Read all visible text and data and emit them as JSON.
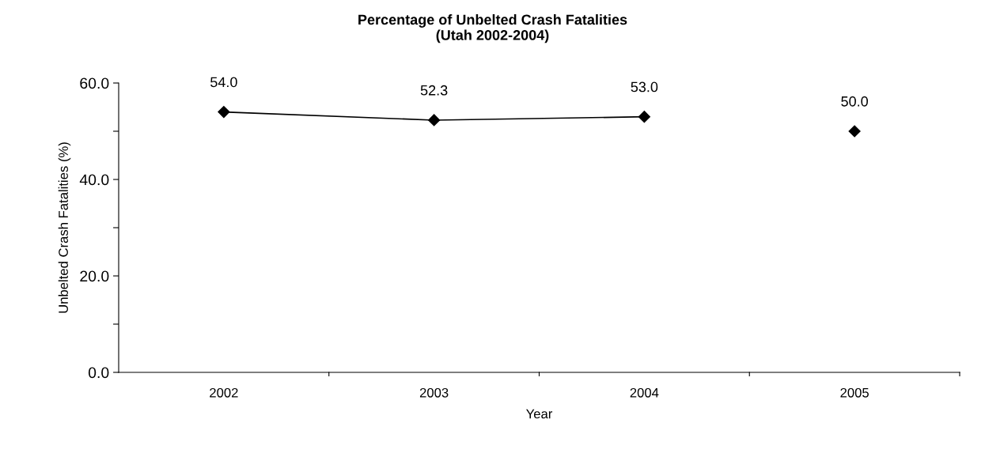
{
  "chart_data": {
    "type": "line",
    "title": "Percentage of Unbelted Crash Fatalities\n(Utah 2002-2004)",
    "xlabel": "Year",
    "ylabel": "Unbelted Crash Fatalities (%)",
    "categories": [
      "2002",
      "2003",
      "2004",
      "2005"
    ],
    "series": [
      {
        "color": "#000000",
        "values": [
          54.0,
          52.3,
          53.0,
          null
        ],
        "value_labels": [
          "54.0",
          "52.3",
          "53.0",
          null
        ]
      },
      {
        "type": "scatter",
        "color": "#000000",
        "values": [
          null,
          null,
          null,
          50.0
        ],
        "value_labels": [
          null,
          null,
          null,
          "50.0"
        ]
      }
    ],
    "ylim": [
      0,
      60
    ],
    "yticks": [
      {
        "value": 0,
        "label": "0.0"
      },
      {
        "value": 10,
        "label": null
      },
      {
        "value": 20,
        "label": "20.0"
      },
      {
        "value": 30,
        "label": null
      },
      {
        "value": 40,
        "label": "40.0"
      },
      {
        "value": 50,
        "label": null
      },
      {
        "value": 60,
        "label": "60.0"
      }
    ],
    "marker": "diamond",
    "line_style": "solid",
    "grid": false,
    "legend": false
  }
}
